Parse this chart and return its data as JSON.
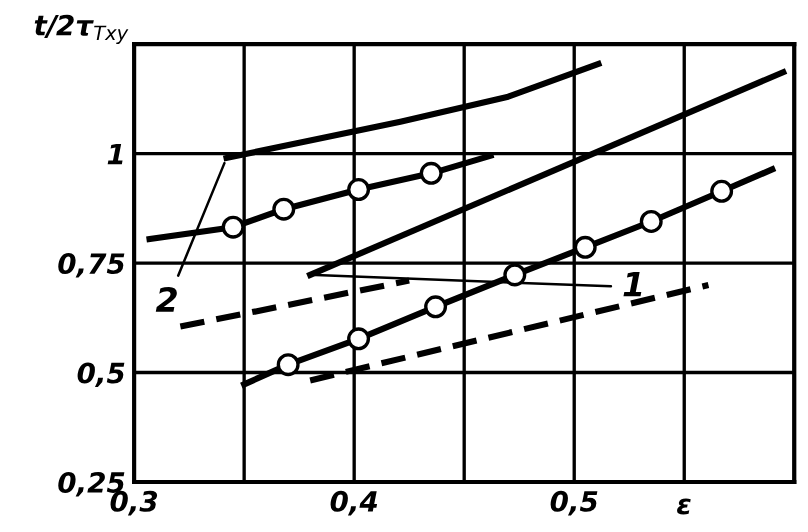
{
  "chart_data": {
    "type": "line",
    "ylabel": "t/2τ$_{Txy}$",
    "xlabel": "ε",
    "xlim": [
      0.3,
      0.6
    ],
    "ylim": [
      0.25,
      1.25
    ],
    "xticks": [
      {
        "value": 0.3,
        "label": "0,3"
      },
      {
        "value": 0.35,
        "label": null
      },
      {
        "value": 0.4,
        "label": "0,4"
      },
      {
        "value": 0.45,
        "label": null
      },
      {
        "value": 0.5,
        "label": "0,5"
      },
      {
        "value": 0.55,
        "label": null
      },
      {
        "value": 0.6,
        "label": null
      }
    ],
    "yticks": [
      {
        "value": 0.25,
        "label": "0,25"
      },
      {
        "value": 0.5,
        "label": "0,5"
      },
      {
        "value": 0.75,
        "label": "0,75"
      },
      {
        "value": 1,
        "label": "1"
      },
      {
        "value": 1.25,
        "label": null
      }
    ],
    "grid": true,
    "series": [
      {
        "color": "#000000",
        "x": [
          0.342,
          0.38,
          0.421,
          0.47,
          0.511
        ],
        "values": [
          0.99,
          1.03,
          1.073,
          1.13,
          1.205
        ],
        "marker": "none",
        "line_style": "solid"
      },
      {
        "color": "#000000",
        "x": [
          0.307,
          0.345,
          0.368,
          0.402,
          0.435,
          0.462
        ],
        "values": [
          0.805,
          0.832,
          0.873,
          0.918,
          0.955,
          0.995
        ],
        "marker": "none",
        "line_style": "solid"
      },
      {
        "type": "scatter",
        "color": "#000000",
        "x": [
          0.345,
          0.368,
          0.402,
          0.435
        ],
        "values": [
          0.832,
          0.873,
          0.918,
          0.955
        ],
        "marker": "circle"
      },
      {
        "color": "#000000",
        "x": [
          0.321,
          0.425
        ],
        "values": [
          0.605,
          0.71
        ],
        "marker": "none",
        "line_style": "dashed"
      },
      {
        "color": "#000000",
        "x": [
          0.38,
          0.595
        ],
        "values": [
          0.723,
          1.186
        ],
        "marker": "none",
        "line_style": "solid"
      },
      {
        "color": "#000000",
        "x": [
          0.35,
          0.37,
          0.402,
          0.437,
          0.473,
          0.505,
          0.535,
          0.567,
          0.59
        ],
        "values": [
          0.473,
          0.518,
          0.577,
          0.65,
          0.723,
          0.786,
          0.845,
          0.914,
          0.964
        ],
        "marker": "none",
        "line_style": "solid"
      },
      {
        "type": "scatter",
        "color": "#000000",
        "x": [
          0.37,
          0.402,
          0.437,
          0.473,
          0.505,
          0.535,
          0.567
        ],
        "values": [
          0.518,
          0.577,
          0.65,
          0.723,
          0.786,
          0.845,
          0.914
        ],
        "marker": "circle"
      },
      {
        "color": "#000000",
        "x": [
          0.38,
          0.561
        ],
        "values": [
          0.482,
          0.7
        ],
        "marker": "none",
        "line_style": "dashed"
      }
    ],
    "annotations": [
      {
        "text": "1",
        "x": 0.38,
        "y": 0.723
      },
      {
        "text": "2",
        "x": 0.342,
        "y": 0.99
      }
    ]
  }
}
